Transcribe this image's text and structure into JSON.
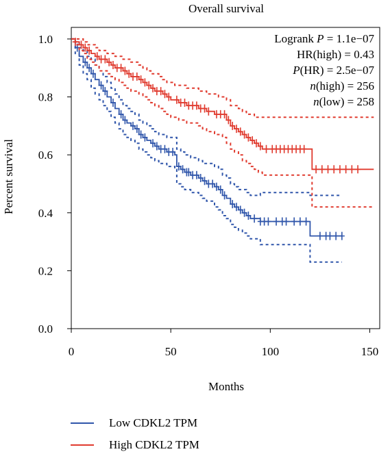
{
  "chart_data": {
    "type": "line",
    "title": "Overall survival",
    "xlabel": "Months",
    "ylabel": "Percent survival",
    "xlim": [
      0,
      155
    ],
    "ylim": [
      0,
      1.04
    ],
    "x_ticks": [
      "0",
      "50",
      "100",
      "150"
    ],
    "y_ticks": [
      "0.0",
      "0.2",
      "0.4",
      "0.6",
      "0.8",
      "1.0"
    ],
    "legend_position": "bottom",
    "stats": {
      "logrank": {
        "prefix": "Logrank ",
        "sym": "P",
        "value": " = 1.1e−07"
      },
      "hr": {
        "prefix": "HR(high) = 0.43"
      },
      "p_hr": {
        "sym": "P",
        "value": "(HR) = 2.5e−07"
      },
      "n_high": {
        "sym": "n",
        "value": "(high) = 256"
      },
      "n_low": {
        "sym": "n",
        "value": "(low) = 258"
      }
    },
    "series": [
      {
        "name": "Low CDKL2 TPM",
        "color": "#2f55aa",
        "x": [
          0,
          2,
          4,
          6,
          8,
          10,
          12,
          14,
          16,
          18,
          20,
          22,
          24,
          26,
          28,
          30,
          32,
          34,
          36,
          38,
          40,
          42,
          44,
          46,
          48,
          50,
          52,
          53,
          55,
          57,
          60,
          62,
          64,
          66,
          68,
          70,
          72,
          74,
          76,
          78,
          80,
          82,
          84,
          86,
          88,
          90,
          95,
          100,
          105,
          110,
          115,
          120,
          125,
          130,
          136
        ],
        "y": [
          1.0,
          0.97,
          0.94,
          0.92,
          0.9,
          0.88,
          0.86,
          0.84,
          0.82,
          0.8,
          0.78,
          0.76,
          0.74,
          0.72,
          0.71,
          0.7,
          0.69,
          0.67,
          0.66,
          0.65,
          0.64,
          0.63,
          0.62,
          0.62,
          0.61,
          0.61,
          0.6,
          0.56,
          0.55,
          0.54,
          0.53,
          0.53,
          0.52,
          0.51,
          0.5,
          0.5,
          0.49,
          0.48,
          0.46,
          0.45,
          0.43,
          0.42,
          0.41,
          0.4,
          0.39,
          0.38,
          0.37,
          0.37,
          0.37,
          0.37,
          0.37,
          0.32,
          0.32,
          0.32,
          0.32
        ],
        "lower": [
          1.0,
          0.95,
          0.91,
          0.88,
          0.86,
          0.83,
          0.81,
          0.79,
          0.77,
          0.75,
          0.73,
          0.71,
          0.69,
          0.67,
          0.66,
          0.65,
          0.64,
          0.62,
          0.61,
          0.6,
          0.59,
          0.58,
          0.57,
          0.57,
          0.56,
          0.56,
          0.55,
          0.5,
          0.49,
          0.48,
          0.47,
          0.47,
          0.46,
          0.45,
          0.44,
          0.44,
          0.42,
          0.41,
          0.39,
          0.38,
          0.36,
          0.35,
          0.34,
          0.33,
          0.32,
          0.31,
          0.29,
          0.29,
          0.29,
          0.29,
          0.29,
          0.23,
          0.23,
          0.23,
          0.23
        ],
        "upper": [
          1.0,
          0.99,
          0.97,
          0.96,
          0.94,
          0.93,
          0.91,
          0.89,
          0.87,
          0.85,
          0.83,
          0.81,
          0.79,
          0.77,
          0.76,
          0.75,
          0.74,
          0.72,
          0.71,
          0.7,
          0.69,
          0.68,
          0.67,
          0.67,
          0.66,
          0.66,
          0.66,
          0.62,
          0.61,
          0.6,
          0.59,
          0.59,
          0.58,
          0.57,
          0.57,
          0.57,
          0.56,
          0.55,
          0.53,
          0.52,
          0.5,
          0.49,
          0.48,
          0.48,
          0.47,
          0.46,
          0.47,
          0.47,
          0.47,
          0.47,
          0.47,
          0.46,
          0.46,
          0.46,
          0.46
        ],
        "censor_x": [
          3,
          7,
          9,
          11,
          15,
          17,
          21,
          25,
          27,
          31,
          33,
          35,
          37,
          41,
          43,
          45,
          47,
          49,
          51,
          54,
          56,
          58,
          59,
          61,
          63,
          65,
          67,
          69,
          71,
          73,
          75,
          77,
          81,
          83,
          85,
          87,
          89,
          92,
          95,
          97,
          99,
          103,
          106,
          108,
          112,
          115,
          118,
          125,
          128,
          130,
          133,
          136
        ]
      },
      {
        "name": "High CDKL2 TPM",
        "color": "#e03a2e",
        "x": [
          0,
          2,
          4,
          6,
          8,
          10,
          12,
          14,
          16,
          18,
          20,
          22,
          24,
          26,
          28,
          30,
          32,
          34,
          36,
          38,
          40,
          42,
          44,
          46,
          48,
          50,
          52,
          54,
          56,
          58,
          60,
          62,
          64,
          66,
          68,
          70,
          72,
          74,
          76,
          78,
          80,
          82,
          84,
          86,
          88,
          90,
          92,
          94,
          96,
          100,
          105,
          110,
          115,
          119,
          121,
          125,
          130,
          140,
          152
        ],
        "y": [
          1.0,
          0.99,
          0.98,
          0.97,
          0.96,
          0.95,
          0.94,
          0.93,
          0.93,
          0.92,
          0.91,
          0.9,
          0.9,
          0.89,
          0.88,
          0.87,
          0.87,
          0.86,
          0.85,
          0.84,
          0.83,
          0.82,
          0.82,
          0.81,
          0.8,
          0.79,
          0.79,
          0.78,
          0.78,
          0.77,
          0.77,
          0.77,
          0.76,
          0.76,
          0.75,
          0.75,
          0.74,
          0.74,
          0.74,
          0.72,
          0.7,
          0.69,
          0.68,
          0.67,
          0.66,
          0.65,
          0.64,
          0.63,
          0.62,
          0.62,
          0.62,
          0.62,
          0.62,
          0.62,
          0.55,
          0.55,
          0.55,
          0.55,
          0.55
        ],
        "lower": [
          1.0,
          0.98,
          0.96,
          0.95,
          0.93,
          0.92,
          0.91,
          0.89,
          0.89,
          0.88,
          0.87,
          0.86,
          0.85,
          0.84,
          0.83,
          0.82,
          0.82,
          0.81,
          0.8,
          0.79,
          0.78,
          0.77,
          0.76,
          0.75,
          0.74,
          0.73,
          0.73,
          0.72,
          0.72,
          0.71,
          0.71,
          0.71,
          0.7,
          0.69,
          0.68,
          0.68,
          0.67,
          0.67,
          0.66,
          0.64,
          0.62,
          0.61,
          0.6,
          0.58,
          0.57,
          0.56,
          0.55,
          0.54,
          0.53,
          0.53,
          0.53,
          0.53,
          0.53,
          0.53,
          0.42,
          0.42,
          0.42,
          0.42,
          0.42
        ],
        "upper": [
          1.0,
          1.0,
          1.0,
          0.99,
          0.98,
          0.98,
          0.97,
          0.96,
          0.96,
          0.95,
          0.95,
          0.94,
          0.94,
          0.93,
          0.93,
          0.92,
          0.92,
          0.91,
          0.9,
          0.89,
          0.88,
          0.88,
          0.87,
          0.86,
          0.85,
          0.85,
          0.84,
          0.84,
          0.84,
          0.83,
          0.83,
          0.83,
          0.82,
          0.82,
          0.81,
          0.81,
          0.81,
          0.8,
          0.8,
          0.79,
          0.77,
          0.77,
          0.76,
          0.75,
          0.74,
          0.74,
          0.73,
          0.73,
          0.73,
          0.73,
          0.73,
          0.73,
          0.73,
          0.73,
          0.73,
          0.73,
          0.73,
          0.73,
          0.73
        ],
        "censor_x": [
          2,
          5,
          7,
          9,
          13,
          15,
          17,
          19,
          21,
          23,
          25,
          27,
          29,
          31,
          33,
          35,
          37,
          39,
          41,
          43,
          45,
          47,
          49,
          53,
          55,
          57,
          59,
          61,
          63,
          65,
          67,
          69,
          73,
          75,
          77,
          79,
          81,
          83,
          85,
          87,
          89,
          91,
          93,
          95,
          98,
          101,
          103,
          105,
          107,
          109,
          111,
          113,
          115,
          117,
          123,
          126,
          129,
          132,
          135,
          138,
          141,
          144
        ]
      }
    ]
  }
}
